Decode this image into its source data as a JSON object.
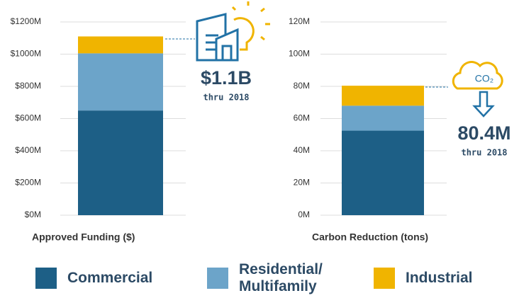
{
  "chart_data": [
    {
      "type": "bar",
      "stacked": true,
      "x_label": "Approved Funding ($)",
      "series": [
        {
          "name": "Commercial",
          "color": "#1d5f86",
          "values": [
            650
          ]
        },
        {
          "name": "Residential/ Multifamily",
          "color": "#6ca4c9",
          "values": [
            355
          ]
        },
        {
          "name": "Industrial",
          "color": "#f0b400",
          "values": [
            105
          ]
        }
      ],
      "ylim": [
        0,
        1200
      ],
      "yticks": [
        {
          "value": 0,
          "label": "$0M"
        },
        {
          "value": 200,
          "label": "$200M"
        },
        {
          "value": 400,
          "label": "$400M"
        },
        {
          "value": 600,
          "label": "$600M"
        },
        {
          "value": 800,
          "label": "$800M"
        },
        {
          "value": 1000,
          "label": "$1000M"
        },
        {
          "value": 1200,
          "label": "$1200M"
        }
      ],
      "grid": true,
      "annotation": {
        "value": "$1.1B",
        "note": "thru 2018"
      }
    },
    {
      "type": "bar",
      "stacked": true,
      "x_label": "Carbon Reduction (tons)",
      "series": [
        {
          "name": "Commercial",
          "color": "#1d5f86",
          "values": [
            52.5
          ]
        },
        {
          "name": "Residential/ Multifamily",
          "color": "#6ca4c9",
          "values": [
            15.5
          ]
        },
        {
          "name": "Industrial",
          "color": "#f0b400",
          "values": [
            12.4
          ]
        }
      ],
      "ylim": [
        0,
        120
      ],
      "yticks": [
        {
          "value": 0,
          "label": "0M"
        },
        {
          "value": 20,
          "label": "20M"
        },
        {
          "value": 40,
          "label": "40M"
        },
        {
          "value": 60,
          "label": "60M"
        },
        {
          "value": 80,
          "label": "80M"
        },
        {
          "value": 100,
          "label": "100M"
        },
        {
          "value": 120,
          "label": "120M"
        }
      ],
      "grid": true,
      "annotation": {
        "value": "80.4M",
        "note": "thru 2018",
        "icon_text": "CO₂"
      }
    }
  ]
}
